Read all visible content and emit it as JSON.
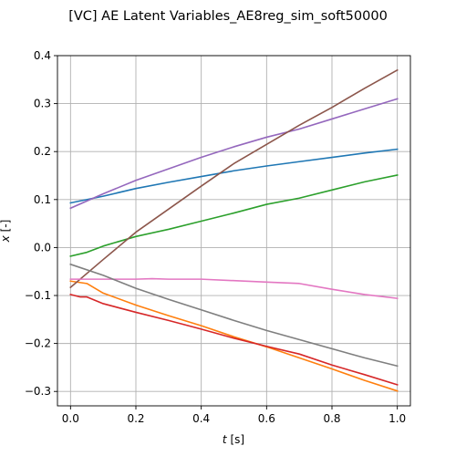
{
  "chart_data": {
    "type": "line",
    "title": "[VC] AE Latent Variables_AE8reg_sim_soft50000",
    "xlabel": "t [s]",
    "xlabel_italic_part": "t",
    "xlabel_unit_part": " [s]",
    "ylabel": "x [-]",
    "ylabel_italic_part": "x",
    "ylabel_unit_part": " [-]",
    "xlim": [
      -0.04,
      1.04
    ],
    "ylim": [
      -0.33,
      0.4
    ],
    "xticks": [
      0.0,
      0.2,
      0.4,
      0.6,
      0.8,
      1.0
    ],
    "xtick_labels": [
      "0.0",
      "0.2",
      "0.4",
      "0.6",
      "0.8",
      "1.0"
    ],
    "yticks": [
      -0.3,
      -0.2,
      -0.1,
      0.0,
      0.1,
      0.2,
      0.3,
      0.4
    ],
    "ytick_labels": [
      "−0.3",
      "−0.2",
      "−0.1",
      "0.0",
      "0.1",
      "0.2",
      "0.3",
      "0.4"
    ],
    "grid": true,
    "legend": false,
    "series": [
      {
        "color": "#1f77b4",
        "x": [
          0.0,
          0.1,
          0.2,
          0.3,
          0.4,
          0.5,
          0.6,
          0.7,
          0.8,
          0.9,
          1.0
        ],
        "y": [
          0.093,
          0.107,
          0.123,
          0.136,
          0.148,
          0.16,
          0.17,
          0.179,
          0.188,
          0.197,
          0.205
        ]
      },
      {
        "color": "#ff7f0e",
        "x": [
          0.0,
          0.05,
          0.1,
          0.2,
          0.3,
          0.4,
          0.5,
          0.6,
          0.7,
          0.8,
          0.9,
          1.0
        ],
        "y": [
          -0.07,
          -0.075,
          -0.095,
          -0.12,
          -0.142,
          -0.163,
          -0.186,
          -0.207,
          -0.23,
          -0.253,
          -0.277,
          -0.299
        ]
      },
      {
        "color": "#2ca02c",
        "x": [
          0.0,
          0.05,
          0.1,
          0.2,
          0.3,
          0.4,
          0.5,
          0.6,
          0.7,
          0.8,
          0.9,
          1.0
        ],
        "y": [
          -0.018,
          -0.01,
          0.003,
          0.023,
          0.038,
          0.055,
          0.072,
          0.09,
          0.103,
          0.12,
          0.137,
          0.151
        ]
      },
      {
        "color": "#d62728",
        "x": [
          0.0,
          0.03,
          0.05,
          0.1,
          0.2,
          0.3,
          0.4,
          0.5,
          0.6,
          0.7,
          0.8,
          0.9,
          1.0
        ],
        "y": [
          -0.098,
          -0.103,
          -0.103,
          -0.117,
          -0.135,
          -0.152,
          -0.17,
          -0.189,
          -0.206,
          -0.222,
          -0.245,
          -0.265,
          -0.286
        ]
      },
      {
        "color": "#9467bd",
        "x": [
          0.0,
          0.1,
          0.2,
          0.3,
          0.4,
          0.5,
          0.6,
          0.7,
          0.8,
          0.9,
          1.0
        ],
        "y": [
          0.082,
          0.112,
          0.14,
          0.164,
          0.188,
          0.21,
          0.23,
          0.247,
          0.268,
          0.289,
          0.31
        ]
      },
      {
        "color": "#8c564b",
        "x": [
          0.0,
          0.1,
          0.2,
          0.3,
          0.4,
          0.5,
          0.6,
          0.7,
          0.8,
          0.9,
          1.0
        ],
        "y": [
          -0.083,
          -0.025,
          0.032,
          0.08,
          0.128,
          0.175,
          0.215,
          0.255,
          0.292,
          0.332,
          0.37
        ]
      },
      {
        "color": "#e377c2",
        "x": [
          0.0,
          0.1,
          0.2,
          0.25,
          0.3,
          0.4,
          0.5,
          0.6,
          0.7,
          0.8,
          0.9,
          1.0
        ],
        "y": [
          -0.066,
          -0.066,
          -0.066,
          -0.065,
          -0.066,
          -0.066,
          -0.069,
          -0.072,
          -0.075,
          -0.087,
          -0.098,
          -0.106
        ]
      },
      {
        "color": "#7f7f7f",
        "x": [
          0.0,
          0.1,
          0.2,
          0.3,
          0.4,
          0.5,
          0.6,
          0.7,
          0.8,
          0.9,
          1.0
        ],
        "y": [
          -0.035,
          -0.058,
          -0.085,
          -0.108,
          -0.13,
          -0.152,
          -0.173,
          -0.192,
          -0.211,
          -0.23,
          -0.247
        ]
      }
    ]
  }
}
